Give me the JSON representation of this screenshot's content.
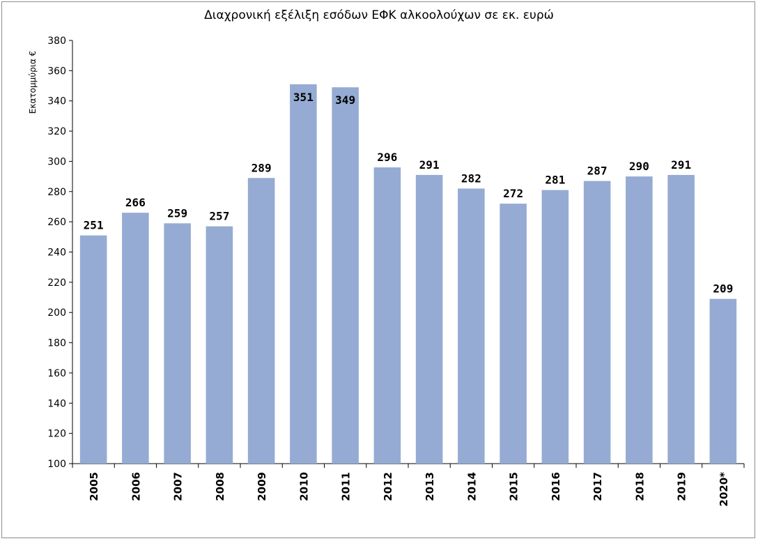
{
  "chart_data": {
    "type": "bar",
    "title": "Διαχρονική εξέλιξη εσόδων ΕΦΚ  αλκοολούχων σε εκ. ευρώ",
    "ylabel": "Εκατομμύρια €",
    "xlabel": "",
    "categories": [
      "2005",
      "2006",
      "2007",
      "2008",
      "2009",
      "2010",
      "2011",
      "2012",
      "2013",
      "2014",
      "2015",
      "2016",
      "2017",
      "2018",
      "2019",
      "2020*"
    ],
    "values": [
      251,
      266,
      259,
      257,
      289,
      351,
      349,
      296,
      291,
      282,
      272,
      281,
      287,
      290,
      291,
      209
    ],
    "ylim": [
      100,
      380
    ],
    "yticks": [
      100,
      120,
      140,
      160,
      180,
      200,
      220,
      240,
      260,
      280,
      300,
      320,
      340,
      360,
      380
    ],
    "bar_color": "#95abd3",
    "grid": false,
    "legend": "none"
  }
}
